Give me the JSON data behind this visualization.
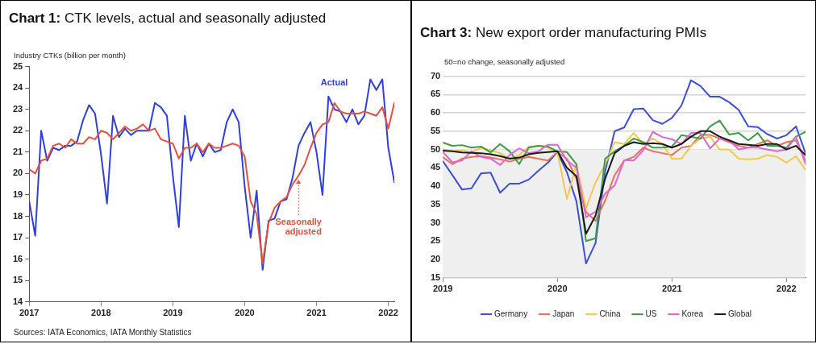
{
  "chart_data": [
    {
      "type": "line",
      "title": "Chart 1: CTK levels, actual and seasonally adjusted",
      "ylabel": "Industry CTKs (billion per month)",
      "x": [
        "2017-01",
        "2017-02",
        "2017-03",
        "2017-04",
        "2017-05",
        "2017-06",
        "2017-07",
        "2017-08",
        "2017-09",
        "2017-10",
        "2017-11",
        "2017-12",
        "2018-01",
        "2018-02",
        "2018-03",
        "2018-04",
        "2018-05",
        "2018-06",
        "2018-07",
        "2018-08",
        "2018-09",
        "2018-10",
        "2018-11",
        "2018-12",
        "2019-01",
        "2019-02",
        "2019-03",
        "2019-04",
        "2019-05",
        "2019-06",
        "2019-07",
        "2019-08",
        "2019-09",
        "2019-10",
        "2019-11",
        "2019-12",
        "2020-01",
        "2020-02",
        "2020-03",
        "2020-04",
        "2020-05",
        "2020-06",
        "2020-07",
        "2020-08",
        "2020-09",
        "2020-10",
        "2020-11",
        "2020-12",
        "2021-01",
        "2021-02",
        "2021-03",
        "2021-04",
        "2021-05",
        "2021-06",
        "2021-07",
        "2021-08",
        "2021-09",
        "2021-10",
        "2021-11",
        "2021-12",
        "2022-01",
        "2022-02"
      ],
      "series": [
        {
          "name": "Actual",
          "color": "#2f3fe0",
          "values": [
            18.7,
            17.1,
            22.0,
            20.6,
            21.2,
            21.1,
            21.3,
            21.3,
            21.5,
            22.5,
            23.2,
            22.8,
            20.9,
            18.6,
            22.7,
            21.7,
            22.1,
            21.8,
            22.0,
            22.0,
            22.0,
            23.3,
            23.1,
            22.7,
            19.9,
            17.5,
            22.7,
            20.6,
            21.4,
            20.8,
            21.4,
            21.0,
            21.1,
            22.4,
            23.0,
            22.4,
            19.4,
            17.0,
            19.2,
            15.5,
            17.8,
            17.9,
            18.7,
            18.8,
            19.8,
            21.3,
            21.9,
            22.4,
            21.0,
            19.0,
            23.6,
            23.0,
            22.9,
            22.4,
            23.0,
            22.3,
            22.7,
            24.4,
            23.9,
            24.4,
            21.2,
            19.6
          ]
        },
        {
          "name": "Seasonally adjusted",
          "color": "#e8503c",
          "values": [
            20.2,
            20.0,
            20.6,
            20.7,
            21.3,
            21.4,
            21.2,
            21.6,
            21.4,
            21.4,
            21.7,
            21.6,
            22.0,
            21.9,
            21.6,
            21.9,
            22.2,
            22.0,
            22.1,
            22.3,
            22.0,
            22.1,
            21.6,
            21.5,
            21.4,
            20.7,
            21.2,
            21.2,
            21.4,
            21.0,
            21.4,
            21.2,
            21.2,
            21.3,
            21.4,
            21.3,
            20.8,
            18.7,
            18.1,
            15.8,
            17.7,
            18.4,
            18.7,
            18.9,
            19.5,
            19.9,
            20.4,
            21.2,
            21.9,
            22.3,
            22.4,
            23.3,
            22.9,
            22.8,
            22.8,
            22.8,
            22.9,
            22.8,
            22.7,
            23.1,
            22.1,
            23.3
          ]
        }
      ],
      "xlim": [
        "2017-01",
        "2022-02"
      ],
      "xticks": [
        "2017",
        "2018",
        "2019",
        "2020",
        "2021",
        "2022"
      ],
      "ylim": [
        14,
        25
      ],
      "yticks": [
        14,
        15,
        16,
        17,
        18,
        19,
        20,
        21,
        22,
        23,
        24,
        25
      ],
      "annotations": [
        "Sources: IATA Economics, IATA Monthly Statistics"
      ]
    },
    {
      "type": "line",
      "title": "Chart 3: New export order manufacturing PMIs",
      "ylabel": "50=no change, seasonally adjusted",
      "x": [
        "2019-01",
        "2019-02",
        "2019-03",
        "2019-04",
        "2019-05",
        "2019-06",
        "2019-07",
        "2019-08",
        "2019-09",
        "2019-10",
        "2019-11",
        "2019-12",
        "2020-01",
        "2020-02",
        "2020-03",
        "2020-04",
        "2020-05",
        "2020-06",
        "2020-07",
        "2020-08",
        "2020-09",
        "2020-10",
        "2020-11",
        "2020-12",
        "2021-01",
        "2021-02",
        "2021-03",
        "2021-04",
        "2021-05",
        "2021-06",
        "2021-07",
        "2021-08",
        "2021-09",
        "2021-10",
        "2021-11",
        "2021-12",
        "2022-01",
        "2022-02",
        "2022-03"
      ],
      "series": [
        {
          "name": "Germany",
          "color": "#3c4fd6",
          "values": [
            46.8,
            43,
            39.1,
            39.4,
            43.5,
            43.7,
            38.2,
            40.7,
            40.7,
            41.8,
            44.2,
            46.4,
            49.3,
            43.8,
            35.8,
            18.9,
            24.5,
            44,
            55,
            56,
            61,
            61.2,
            58,
            57,
            58.6,
            62,
            68.9,
            67.3,
            64.4,
            64.4,
            62.9,
            60.8,
            56.3,
            56.1,
            54.2,
            53,
            53.9,
            56.3,
            49
          ]
        },
        {
          "name": "Japan",
          "color": "#e8735a",
          "values": [
            47.9,
            46,
            47.5,
            48,
            48.2,
            47.8,
            47.3,
            46.7,
            47.5,
            48,
            47.5,
            47,
            49.3,
            47.5,
            42,
            33,
            30.5,
            36,
            43,
            47,
            48,
            50.5,
            49.5,
            49,
            48.5,
            50.5,
            51,
            54,
            54,
            53,
            52,
            51,
            50.5,
            51.5,
            52.5,
            51,
            52,
            52.5,
            47
          ]
        },
        {
          "name": "China",
          "color": "#f2c94c",
          "values": [
            50.1,
            49.5,
            49.8,
            49.2,
            50.5,
            49.8,
            49,
            47.5,
            48.5,
            50.8,
            51,
            50.5,
            49.3,
            36.5,
            46,
            34,
            41,
            46,
            52,
            51.5,
            54.5,
            51.5,
            53,
            51.5,
            47.5,
            47.5,
            51,
            53,
            53.5,
            50,
            50,
            47.5,
            47.3,
            47.5,
            48.5,
            48,
            46.4,
            48.2,
            44.4
          ]
        },
        {
          "name": "US",
          "color": "#3e9b48",
          "values": [
            51.9,
            51,
            51.2,
            50.5,
            50.8,
            49.2,
            51.5,
            49.5,
            46,
            50.5,
            51,
            50.8,
            49.5,
            49.3,
            46,
            25,
            25.8,
            47.5,
            49.5,
            51,
            53,
            52,
            50.5,
            50.5,
            50.8,
            53.9,
            53.5,
            53,
            56.3,
            57.9,
            54.1,
            54.5,
            52.5,
            54.5,
            51,
            51,
            50.5,
            53.5,
            54.8
          ]
        },
        {
          "name": "Korea",
          "color": "#e066cf",
          "values": [
            49.3,
            46.5,
            47,
            49.5,
            48,
            47.5,
            45.8,
            48.5,
            50.3,
            49,
            49.5,
            51.3,
            51.3,
            47,
            45,
            31.5,
            33,
            38,
            40.2,
            47.1,
            47,
            49.8,
            54.8,
            53.4,
            52.8,
            51.5,
            54.5,
            54.5,
            50.3,
            53,
            52.5,
            50,
            50.5,
            50.5,
            50,
            49.5,
            50,
            53.5,
            46
          ]
        },
        {
          "name": "Global",
          "color": "#1a1a1a",
          "values": [
            49.7,
            49.5,
            49.2,
            49.1,
            49,
            48.7,
            48.2,
            47.5,
            47.8,
            48.7,
            49.1,
            49.3,
            49.5,
            45,
            42.7,
            27,
            32,
            42,
            49,
            51,
            52,
            51.5,
            51.7,
            51.5,
            50.5,
            51.5,
            53.5,
            55,
            55,
            53.5,
            52.5,
            51.5,
            51.3,
            51,
            51.5,
            51.5,
            50,
            51,
            48.5
          ]
        }
      ],
      "xlim": [
        "2019-01",
        "2022-03"
      ],
      "xticks": [
        "2019",
        "2020",
        "2021",
        "2022"
      ],
      "ylim": [
        15,
        70
      ],
      "yticks": [
        15,
        20,
        25,
        30,
        35,
        40,
        45,
        50,
        55,
        60,
        65,
        70
      ],
      "grid": "y",
      "legend": "bottom",
      "bands": [
        {
          "axis": "y",
          "from": 15,
          "to": 50,
          "color": "#efefef"
        }
      ]
    }
  ]
}
